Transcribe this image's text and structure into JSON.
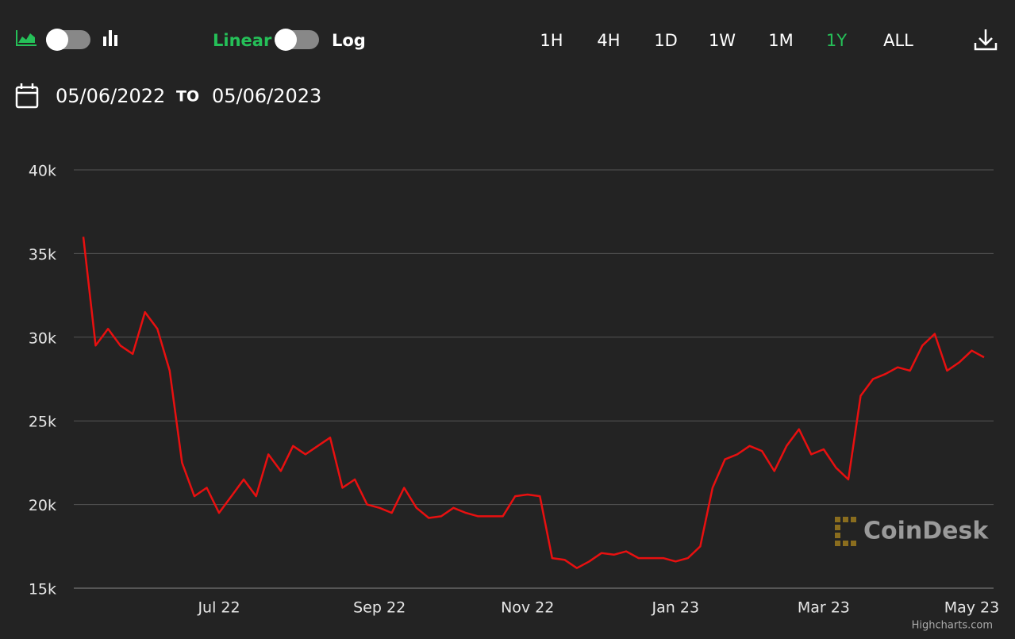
{
  "controls": {
    "scale_labels": [
      "Linear",
      "Log"
    ],
    "ranges": [
      "1H",
      "4H",
      "1D",
      "1W",
      "1M",
      "1Y",
      "ALL"
    ],
    "active_range_index": 5
  },
  "date_range": {
    "from": "05/06/2022",
    "separator": "TO",
    "to": "05/06/2023"
  },
  "watermark": "CoinDesk",
  "credit": "Highcharts.com",
  "chart_data": {
    "type": "line",
    "color": "#e81010",
    "grid": true,
    "categories": [
      null,
      null,
      null,
      null,
      null,
      null,
      null,
      null,
      null,
      null,
      null,
      "Jul 22",
      null,
      null,
      null,
      null,
      null,
      null,
      null,
      null,
      null,
      null,
      null,
      null,
      "Sep 22",
      null,
      null,
      null,
      null,
      null,
      null,
      null,
      null,
      null,
      null,
      null,
      "Nov 22",
      null,
      null,
      null,
      null,
      null,
      null,
      null,
      null,
      null,
      null,
      null,
      "Jan 23",
      null,
      null,
      null,
      null,
      null,
      null,
      null,
      null,
      null,
      null,
      null,
      "Mar 23",
      null,
      null,
      null,
      null,
      null,
      null,
      null,
      null,
      null,
      null,
      null,
      "May 23",
      null
    ],
    "values": [
      36000,
      29500,
      30500,
      29500,
      29000,
      31500,
      30500,
      28000,
      22500,
      20500,
      21000,
      19500,
      20500,
      21500,
      20500,
      23000,
      22000,
      23500,
      23000,
      23500,
      24000,
      21000,
      21500,
      20000,
      19800,
      19500,
      21000,
      19800,
      19200,
      19300,
      19800,
      19500,
      19300,
      19300,
      19300,
      20500,
      20600,
      20500,
      16800,
      16700,
      16200,
      16600,
      17100,
      17000,
      17200,
      16800,
      16800,
      16800,
      16600,
      16800,
      17500,
      21000,
      22700,
      23000,
      23500,
      23200,
      22000,
      23500,
      24500,
      23000,
      23300,
      22200,
      21500,
      26500,
      27500,
      27800,
      28200,
      28000,
      29500,
      30200,
      28000,
      28500,
      29200,
      28800
    ],
    "ylim": [
      15000,
      40000
    ],
    "yticks": [
      {
        "value": 15000,
        "label": "15k"
      },
      {
        "value": 20000,
        "label": "20k"
      },
      {
        "value": 25000,
        "label": "25k"
      },
      {
        "value": 30000,
        "label": "30k"
      },
      {
        "value": 35000,
        "label": "35k"
      },
      {
        "value": 40000,
        "label": "40k"
      }
    ]
  }
}
